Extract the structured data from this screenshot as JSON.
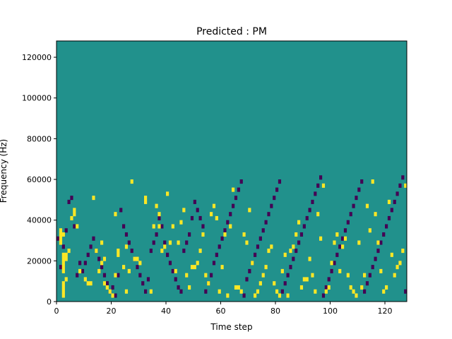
{
  "chart_data": {
    "type": "heatmap",
    "title": "Predicted : PM",
    "xlabel": "Time step",
    "ylabel": "Frequency (Hz)",
    "xlim": [
      0,
      128
    ],
    "ylim": [
      0,
      128000
    ],
    "x_ticks": [
      0,
      20,
      40,
      60,
      80,
      100,
      120
    ],
    "y_ticks": [
      0,
      20000,
      40000,
      60000,
      80000,
      100000,
      120000
    ],
    "grid": false,
    "legend": "none",
    "grid_size": {
      "time_steps": 128,
      "frequency_bins": 64
    },
    "colors": {
      "low": "#440154",
      "mid": "#21918c",
      "high": "#fde725"
    },
    "background_value": "mid",
    "high_cells": [
      [
        1,
        14
      ],
      [
        1,
        15
      ],
      [
        1,
        16
      ],
      [
        1,
        17
      ],
      [
        2,
        1
      ],
      [
        2,
        2
      ],
      [
        2,
        3
      ],
      [
        2,
        4
      ],
      [
        2,
        7
      ],
      [
        2,
        8
      ],
      [
        2,
        9
      ],
      [
        2,
        10
      ],
      [
        2,
        11
      ],
      [
        2,
        16
      ],
      [
        3,
        5
      ],
      [
        3,
        10
      ],
      [
        3,
        11
      ],
      [
        4,
        12
      ],
      [
        5,
        20
      ],
      [
        6,
        21
      ],
      [
        6,
        22
      ],
      [
        7,
        18
      ],
      [
        8,
        7
      ],
      [
        10,
        5
      ],
      [
        11,
        4
      ],
      [
        12,
        4
      ],
      [
        13,
        25
      ],
      [
        14,
        12
      ],
      [
        15,
        7
      ],
      [
        16,
        9
      ],
      [
        16,
        14
      ],
      [
        17,
        4
      ],
      [
        17,
        10
      ],
      [
        18,
        3
      ],
      [
        19,
        2
      ],
      [
        20,
        1
      ],
      [
        21,
        6
      ],
      [
        21,
        21
      ],
      [
        22,
        11
      ],
      [
        22,
        12
      ],
      [
        24,
        8
      ],
      [
        25,
        2
      ],
      [
        25,
        13
      ],
      [
        26,
        7
      ],
      [
        27,
        29
      ],
      [
        28,
        10
      ],
      [
        29,
        10
      ],
      [
        30,
        9
      ],
      [
        32,
        24
      ],
      [
        32,
        25
      ],
      [
        34,
        2
      ],
      [
        35,
        18
      ],
      [
        36,
        23
      ],
      [
        37,
        21
      ],
      [
        37,
        18
      ],
      [
        38,
        12
      ],
      [
        39,
        13
      ],
      [
        40,
        26
      ],
      [
        41,
        14
      ],
      [
        42,
        18
      ],
      [
        43,
        7
      ],
      [
        44,
        14
      ],
      [
        45,
        19
      ],
      [
        46,
        22
      ],
      [
        47,
        6
      ],
      [
        48,
        3
      ],
      [
        49,
        8
      ],
      [
        50,
        8
      ],
      [
        51,
        9
      ],
      [
        52,
        12
      ],
      [
        53,
        16
      ],
      [
        54,
        6
      ],
      [
        55,
        4
      ],
      [
        56,
        21
      ],
      [
        57,
        23
      ],
      [
        58,
        20
      ],
      [
        59,
        2
      ],
      [
        60,
        8
      ],
      [
        61,
        16
      ],
      [
        62,
        1
      ],
      [
        63,
        18
      ],
      [
        64,
        27
      ],
      [
        65,
        3
      ],
      [
        66,
        3
      ],
      [
        67,
        2
      ],
      [
        68,
        16
      ],
      [
        69,
        14
      ],
      [
        70,
        22
      ],
      [
        71,
        9
      ],
      [
        72,
        1
      ],
      [
        73,
        2
      ],
      [
        74,
        4
      ],
      [
        75,
        6
      ],
      [
        76,
        8
      ],
      [
        77,
        12
      ],
      [
        78,
        13
      ],
      [
        79,
        4
      ],
      [
        80,
        2
      ],
      [
        81,
        1
      ],
      [
        82,
        7
      ],
      [
        83,
        11
      ],
      [
        84,
        1
      ],
      [
        85,
        12
      ],
      [
        86,
        13
      ],
      [
        87,
        16
      ],
      [
        88,
        19
      ],
      [
        89,
        3
      ],
      [
        90,
        5
      ],
      [
        91,
        5
      ],
      [
        92,
        10
      ],
      [
        93,
        6
      ],
      [
        94,
        2
      ],
      [
        95,
        21
      ],
      [
        96,
        15
      ],
      [
        97,
        28
      ],
      [
        98,
        2
      ],
      [
        99,
        3
      ],
      [
        100,
        9
      ],
      [
        101,
        14
      ],
      [
        102,
        16
      ],
      [
        103,
        7
      ],
      [
        104,
        13
      ],
      [
        105,
        15
      ],
      [
        106,
        6
      ],
      [
        107,
        3
      ],
      [
        108,
        2
      ],
      [
        109,
        1
      ],
      [
        110,
        14
      ],
      [
        111,
        3
      ],
      [
        112,
        6
      ],
      [
        113,
        23
      ],
      [
        114,
        17
      ],
      [
        115,
        29
      ],
      [
        116,
        21
      ],
      [
        117,
        14
      ],
      [
        118,
        7
      ],
      [
        119,
        2
      ],
      [
        120,
        3
      ],
      [
        121,
        24
      ],
      [
        122,
        11
      ],
      [
        123,
        6
      ],
      [
        124,
        8
      ],
      [
        125,
        9
      ],
      [
        126,
        12
      ],
      [
        127,
        28
      ]
    ],
    "low_cells": [
      [
        0,
        15
      ],
      [
        1,
        8
      ],
      [
        2,
        13
      ],
      [
        3,
        17
      ],
      [
        4,
        24
      ],
      [
        5,
        25
      ],
      [
        6,
        18
      ],
      [
        7,
        6
      ],
      [
        8,
        9
      ],
      [
        9,
        7
      ],
      [
        10,
        9
      ],
      [
        11,
        11
      ],
      [
        12,
        13
      ],
      [
        13,
        15
      ],
      [
        14,
        12
      ],
      [
        15,
        10
      ],
      [
        16,
        8
      ],
      [
        17,
        6
      ],
      [
        18,
        4
      ],
      [
        19,
        2
      ],
      [
        20,
        3
      ],
      [
        21,
        1
      ],
      [
        22,
        6
      ],
      [
        23,
        22
      ],
      [
        24,
        18
      ],
      [
        25,
        16
      ],
      [
        26,
        14
      ],
      [
        27,
        12
      ],
      [
        28,
        10
      ],
      [
        29,
        8
      ],
      [
        30,
        6
      ],
      [
        31,
        4
      ],
      [
        32,
        2
      ],
      [
        33,
        5
      ],
      [
        34,
        12
      ],
      [
        35,
        14
      ],
      [
        36,
        16
      ],
      [
        37,
        20
      ],
      [
        38,
        18
      ],
      [
        39,
        14
      ],
      [
        40,
        11
      ],
      [
        41,
        9
      ],
      [
        42,
        7
      ],
      [
        43,
        5
      ],
      [
        44,
        3
      ],
      [
        45,
        2
      ],
      [
        46,
        12
      ],
      [
        47,
        14
      ],
      [
        48,
        16
      ],
      [
        49,
        20
      ],
      [
        50,
        24
      ],
      [
        51,
        22
      ],
      [
        52,
        20
      ],
      [
        53,
        18
      ],
      [
        54,
        2
      ],
      [
        55,
        4
      ],
      [
        56,
        6
      ],
      [
        57,
        9
      ],
      [
        58,
        11
      ],
      [
        59,
        13
      ],
      [
        60,
        15
      ],
      [
        61,
        17
      ],
      [
        62,
        19
      ],
      [
        63,
        21
      ],
      [
        64,
        23
      ],
      [
        65,
        25
      ],
      [
        66,
        27
      ],
      [
        67,
        29
      ],
      [
        68,
        1
      ],
      [
        69,
        5
      ],
      [
        70,
        7
      ],
      [
        71,
        9
      ],
      [
        72,
        11
      ],
      [
        73,
        13
      ],
      [
        74,
        15
      ],
      [
        75,
        17
      ],
      [
        76,
        19
      ],
      [
        77,
        21
      ],
      [
        78,
        23
      ],
      [
        79,
        25
      ],
      [
        80,
        27
      ],
      [
        81,
        29
      ],
      [
        82,
        2
      ],
      [
        83,
        4
      ],
      [
        84,
        6
      ],
      [
        85,
        8
      ],
      [
        86,
        10
      ],
      [
        87,
        12
      ],
      [
        88,
        14
      ],
      [
        89,
        16
      ],
      [
        90,
        18
      ],
      [
        91,
        20
      ],
      [
        92,
        22
      ],
      [
        93,
        24
      ],
      [
        94,
        26
      ],
      [
        95,
        28
      ],
      [
        96,
        30
      ],
      [
        97,
        1
      ],
      [
        98,
        3
      ],
      [
        99,
        5
      ],
      [
        100,
        7
      ],
      [
        101,
        9
      ],
      [
        102,
        11
      ],
      [
        103,
        13
      ],
      [
        104,
        15
      ],
      [
        105,
        17
      ],
      [
        106,
        19
      ],
      [
        107,
        21
      ],
      [
        108,
        23
      ],
      [
        109,
        25
      ],
      [
        110,
        27
      ],
      [
        111,
        29
      ],
      [
        112,
        2
      ],
      [
        113,
        4
      ],
      [
        114,
        6
      ],
      [
        115,
        8
      ],
      [
        116,
        10
      ],
      [
        117,
        12
      ],
      [
        118,
        14
      ],
      [
        119,
        16
      ],
      [
        120,
        18
      ],
      [
        121,
        20
      ],
      [
        122,
        22
      ],
      [
        123,
        24
      ],
      [
        124,
        26
      ],
      [
        125,
        28
      ],
      [
        126,
        30
      ],
      [
        127,
        2
      ]
    ]
  }
}
